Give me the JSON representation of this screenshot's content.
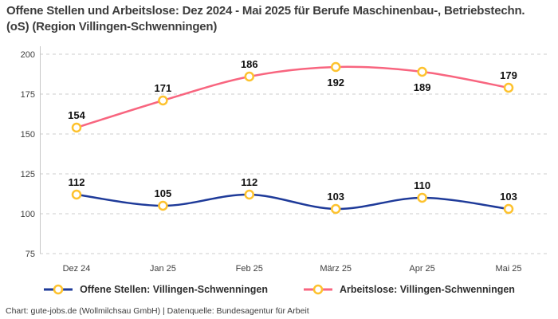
{
  "title": "Offene Stellen und Arbeitslose: Dez 2024 - Mai 2025 für Berufe Maschinenbau-, Betriebstechn.(oS) (Region Villingen-Schwenningen)",
  "footer": "Chart: gute-jobs.de (Wollmilchsau GmbH) | Datenquelle: Bundesagentur für Arbeit",
  "colors": {
    "offene_stellen_line": "#1e3a99",
    "arbeitslose_line": "#f8657f",
    "marker_stroke": "#fdc22e",
    "marker_fill": "#ffffff",
    "gridline": "#cccccc",
    "tick_text": "#3d3d3d",
    "value_label": "#111111",
    "background": "#ffffff"
  },
  "chart_data": {
    "type": "line",
    "categories": [
      "Dez 24",
      "Jan 25",
      "Feb 25",
      "März 25",
      "Apr 25",
      "Mai 25"
    ],
    "series": [
      {
        "name": "Offene Stellen: Villingen-Schwenningen",
        "color": "#1e3a99",
        "values": [
          112,
          105,
          112,
          103,
          110,
          103
        ],
        "label_positions": [
          "above",
          "above",
          "above",
          "above",
          "above",
          "above"
        ]
      },
      {
        "name": "Arbeitslose: Villingen-Schwenningen",
        "color": "#f8657f",
        "values": [
          154,
          171,
          186,
          192,
          189,
          179
        ],
        "label_positions": [
          "above",
          "above",
          "above",
          "below",
          "below",
          "above"
        ]
      }
    ],
    "ylim": [
      75,
      200
    ],
    "yticks": [
      75,
      100,
      125,
      150,
      175,
      200
    ],
    "grid": "horizontal-dashed",
    "legend_position": "bottom",
    "marker": {
      "fill": "#ffffff",
      "stroke": "#fdc22e"
    }
  }
}
